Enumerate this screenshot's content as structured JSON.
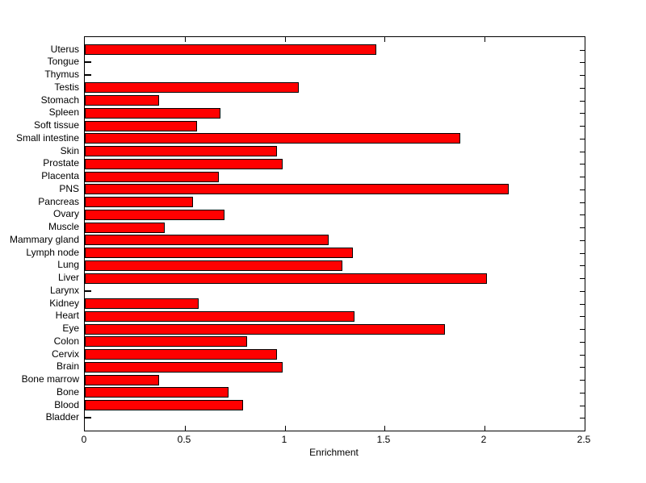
{
  "figure": {
    "background_color": "#ffffff",
    "axis_color": "#000000",
    "text_color": "#000000"
  },
  "chart_data": {
    "type": "bar",
    "orientation": "horizontal",
    "title": "",
    "xlabel": "Enrichment",
    "ylabel": "",
    "xlim": [
      0,
      2.5
    ],
    "xticks": [
      0,
      0.5,
      1,
      1.5,
      2,
      2.5
    ],
    "xtick_labels": [
      "0",
      "0.5",
      "1",
      "1.5",
      "2",
      "2.5"
    ],
    "grid": false,
    "legend": "none",
    "bar_color": "#ff0000",
    "bar_edge_color": "#000000",
    "categories": [
      "Uterus",
      "Tongue",
      "Thymus",
      "Testis",
      "Stomach",
      "Spleen",
      "Soft tissue",
      "Small intestine",
      "Skin",
      "Prostate",
      "Placenta",
      "PNS",
      "Pancreas",
      "Ovary",
      "Muscle",
      "Mammary gland",
      "Lymph node",
      "Lung",
      "Liver",
      "Larynx",
      "Kidney",
      "Heart",
      "Eye",
      "Colon",
      "Cervix",
      "Brain",
      "Bone marrow",
      "Bone",
      "Blood",
      "Bladder"
    ],
    "values": [
      1.46,
      0,
      0,
      1.07,
      0.37,
      0.68,
      0.56,
      1.88,
      0.96,
      0.99,
      0.67,
      2.12,
      0.54,
      0.7,
      0.4,
      1.22,
      1.34,
      1.29,
      2.01,
      0,
      0.57,
      1.35,
      1.8,
      0.81,
      0.96,
      0.99,
      0.37,
      0.72,
      0.79,
      0
    ]
  }
}
